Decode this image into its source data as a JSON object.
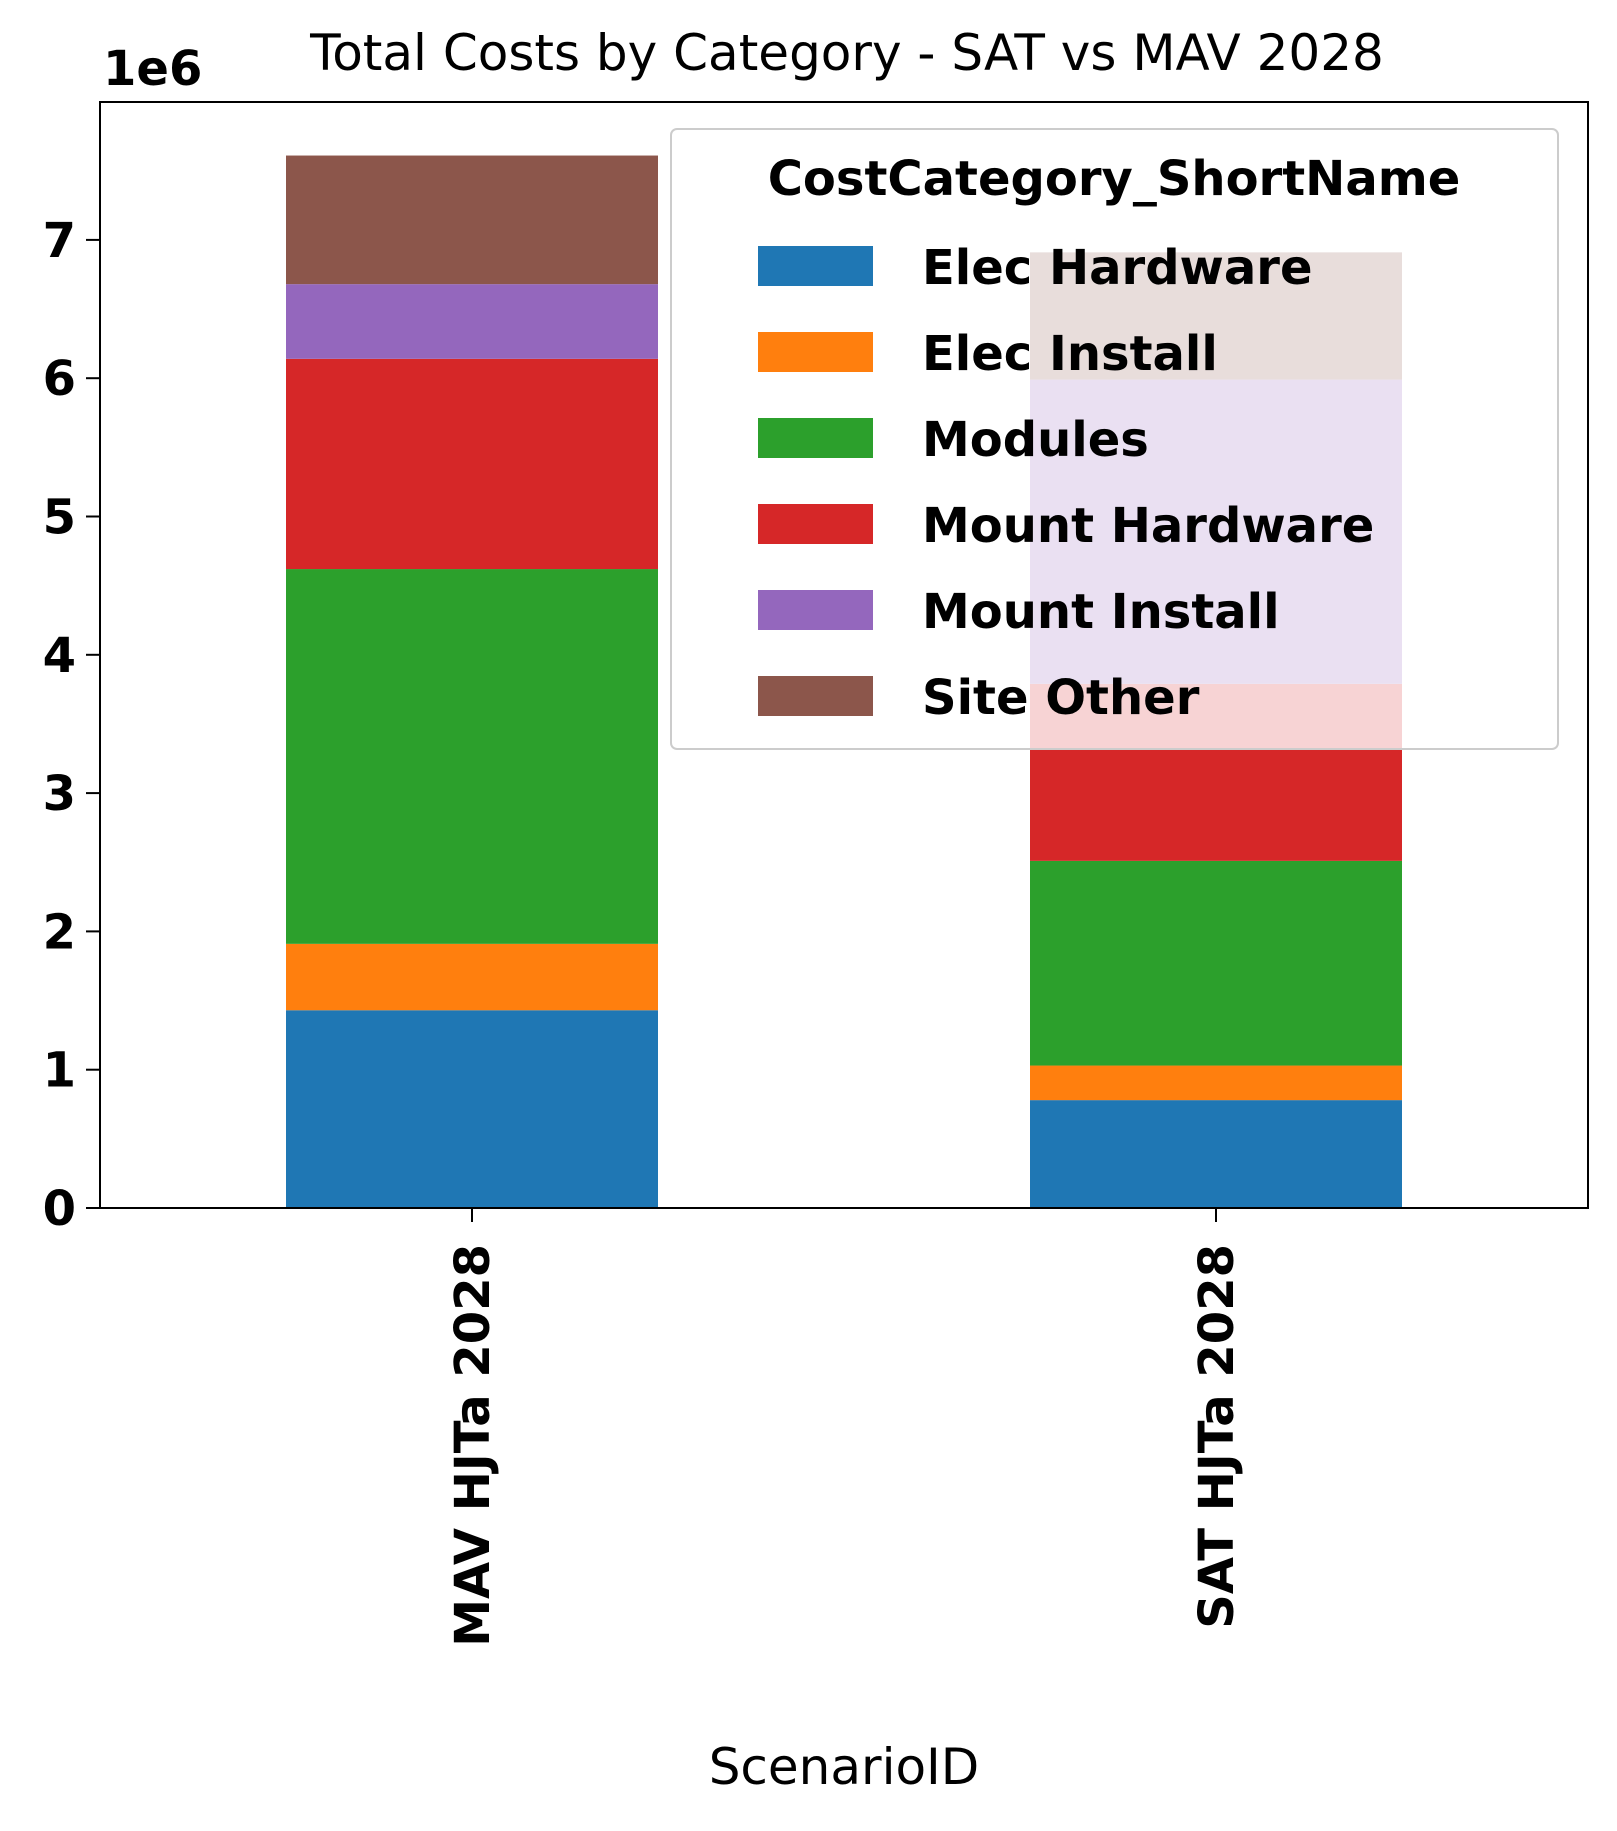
{
  "chart_data": {
    "type": "bar",
    "stacked": true,
    "title": "Total Costs by Category - SAT vs MAV 2028",
    "xlabel": "ScenarioID",
    "ylabel": "",
    "y_multiplier_label": "1e6",
    "ylim": [
      0,
      8000000
    ],
    "yticks": [
      0,
      1,
      2,
      3,
      4,
      5,
      6,
      7
    ],
    "categories": [
      "MAV HJTa 2028",
      "SAT HJTa 2028"
    ],
    "legend_title": "CostCategory_ShortName",
    "legend_position": "upper right",
    "grid": false,
    "series": [
      {
        "name": "Elec Hardware",
        "color": "#1f77b4",
        "values": [
          1430000,
          780000
        ]
      },
      {
        "name": "Elec Install",
        "color": "#ff7f0e",
        "values": [
          480000,
          250000
        ]
      },
      {
        "name": "Modules",
        "color": "#2ca02c",
        "values": [
          2710000,
          1480000
        ]
      },
      {
        "name": "Mount Hardware",
        "color": "#d62728",
        "values": [
          1520000,
          1280000
        ]
      },
      {
        "name": "Mount Install",
        "color": "#9467bd",
        "values": [
          540000,
          2200000
        ]
      },
      {
        "name": "Site Other",
        "color": "#8c564b",
        "values": [
          930000,
          920000
        ]
      }
    ]
  }
}
